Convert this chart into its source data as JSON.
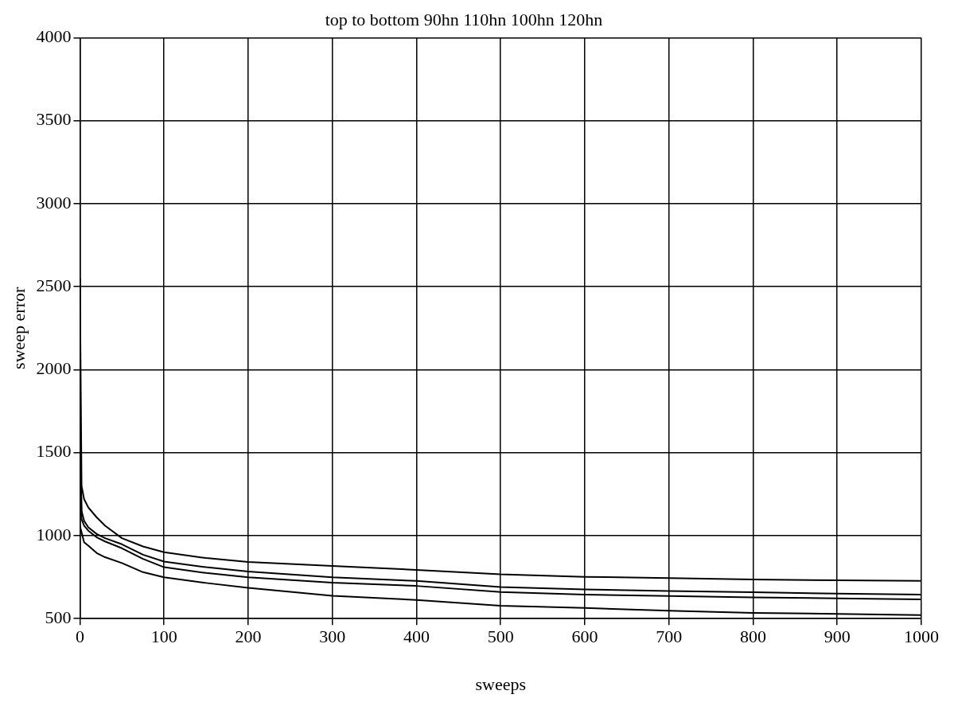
{
  "chart_data": {
    "type": "line",
    "title": "top to bottom 90hn 110hn 100hn 120hn",
    "xlabel": "sweeps",
    "ylabel": "sweep error",
    "x": [
      0,
      2,
      5,
      10,
      20,
      30,
      50,
      75,
      100,
      150,
      200,
      300,
      400,
      500,
      600,
      700,
      800,
      900,
      1000
    ],
    "series": [
      {
        "color": "#000000",
        "values": [
          2550,
          1300,
          1220,
          1170,
          1110,
          1060,
          985,
          935,
          900,
          865,
          841,
          818,
          794,
          767,
          752,
          744,
          736,
          731,
          727
        ]
      },
      {
        "color": "#000000",
        "values": [
          1900,
          1150,
          1090,
          1050,
          1010,
          985,
          948,
          885,
          844,
          810,
          784,
          749,
          727,
          690,
          676,
          667,
          659,
          651,
          645
        ]
      },
      {
        "color": "#000000",
        "values": [
          1700,
          1100,
          1060,
          1030,
          990,
          965,
          924,
          860,
          810,
          775,
          749,
          717,
          697,
          661,
          645,
          636,
          628,
          622,
          616
        ]
      },
      {
        "color": "#000000",
        "values": [
          1060,
          1020,
          960,
          940,
          895,
          870,
          835,
          780,
          749,
          715,
          686,
          638,
          613,
          578,
          564,
          548,
          535,
          529,
          521
        ]
      }
    ],
    "xlim": [
      0,
      1000
    ],
    "ylim": [
      500,
      4000
    ],
    "xticks": [
      0,
      100,
      200,
      300,
      400,
      500,
      600,
      700,
      800,
      900,
      1000
    ],
    "yticks": [
      500,
      1000,
      1500,
      2000,
      2500,
      3000,
      3500,
      4000
    ],
    "grid": true,
    "legend": false,
    "marker": "none",
    "line_style": "solid"
  }
}
